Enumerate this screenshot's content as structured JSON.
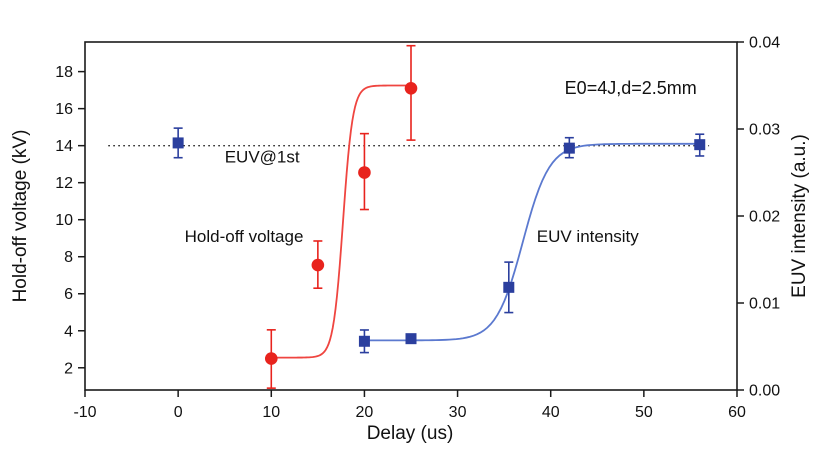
{
  "figure": {
    "background": "#ffffff"
  },
  "chart_data": {
    "type": "scatter",
    "title": "",
    "xlabel": "Delay (us)",
    "ylabel_left": "Hold-off voltage (kV)",
    "ylabel_right": "EUV intensity (a.u.)",
    "xlim": [
      -10,
      60
    ],
    "xticks": [
      -10,
      0,
      10,
      20,
      30,
      40,
      50,
      60
    ],
    "ylim_left": [
      0.8,
      19.6
    ],
    "yticks_left": [
      2,
      4,
      6,
      8,
      10,
      12,
      14,
      16,
      18
    ],
    "ylim_right": [
      0.0,
      0.04
    ],
    "yticks_right": [
      "0.00",
      "0.01",
      "0.02",
      "0.03",
      "0.04"
    ],
    "grid": false,
    "legend": "none",
    "frame_color": "#1a1a1a",
    "reference_line": {
      "label": "EUV@1st",
      "axis": "left",
      "y": 14,
      "x_start": -7.5,
      "x_end": 57,
      "style": "dotted",
      "color": "#222222"
    },
    "series": [
      {
        "name": "Hold-off voltage",
        "axis": "left",
        "color": "#e8231d",
        "curve_color": "#ef4540",
        "marker": "circle",
        "points": [
          {
            "x": 10,
            "y": 2.5,
            "err": [
              1.6,
              1.55
            ]
          },
          {
            "x": 15,
            "y": 7.55,
            "err": [
              1.25,
              1.3
            ]
          },
          {
            "x": 20,
            "y": 12.55,
            "err": [
              2.0,
              2.1
            ]
          },
          {
            "x": 25,
            "y": 17.1,
            "err": [
              2.8,
              2.3
            ]
          }
        ],
        "fit": {
          "type": "sigmoid",
          "base": 2.55,
          "top": 17.25,
          "x0": 17.7,
          "k": 1.9,
          "x_start": 10.3,
          "x_end": 25.3
        }
      },
      {
        "name": "EUV intensity",
        "axis": "right",
        "color": "#2b3f9e",
        "curve_color": "#5b79cf",
        "marker": "square",
        "points": [
          {
            "x": 0,
            "y": 0.0284,
            "err": [
              0.0017,
              0.0017
            ]
          },
          {
            "x": 20,
            "y": 0.0056,
            "err": [
              0.0013,
              0.0013
            ]
          },
          {
            "x": 25,
            "y": 0.0059,
            "err": [
              0.0003,
              0.0003
            ]
          },
          {
            "x": 35.5,
            "y": 0.0118,
            "err": [
              0.0029,
              0.0029
            ]
          },
          {
            "x": 42,
            "y": 0.0278,
            "err": [
              0.0011,
              0.0012
            ]
          },
          {
            "x": 56,
            "y": 0.0282,
            "err": [
              0.0013,
              0.0012
            ]
          }
        ],
        "fit": {
          "type": "sigmoid",
          "base": 0.0057,
          "top": 0.0283,
          "x0": 37.0,
          "k": 0.7,
          "x_start": 19.5,
          "x_end": 56.5
        }
      }
    ],
    "annotations": [
      {
        "text": "E0=4J,d=2.5mm",
        "x": 41.5,
        "y_left": 16.8,
        "anchor": "start",
        "size": 18
      },
      {
        "text": "EUV@1st",
        "x": 5.0,
        "y_left": 13.1,
        "anchor": "start",
        "size": 17
      },
      {
        "text": "Hold-off voltage",
        "x": 0.7,
        "y_left": 8.8,
        "anchor": "start",
        "size": 17
      },
      {
        "text": "EUV intensity",
        "x": 38.5,
        "y_left": 8.8,
        "anchor": "start",
        "size": 17
      }
    ]
  }
}
